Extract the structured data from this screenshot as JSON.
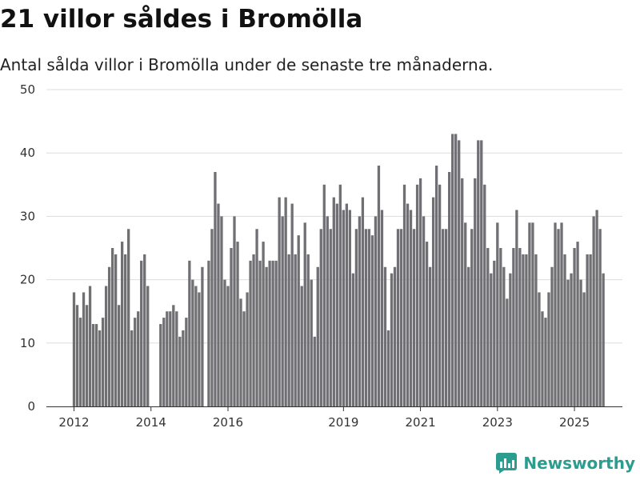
{
  "header": {
    "title": "21 villor såldes i Bromölla",
    "subtitle": "Antal sålda villor i Bromölla under de senaste tre månaderna."
  },
  "brand": {
    "name": "Newsworthy",
    "icon": "newsworthy-logo-icon",
    "color": "#2a9d8f"
  },
  "colors": {
    "bar": "#707074",
    "highlight": "#1a9a9a",
    "grid": "#dddddd"
  },
  "chart_data": {
    "type": "bar",
    "title": "",
    "xlabel": "",
    "ylabel": "",
    "ylim": [
      0,
      50
    ],
    "yticks": [
      "0",
      "10",
      "20",
      "30",
      "40",
      "50"
    ],
    "xticks": [
      "2012",
      "2014",
      "2016",
      "2019",
      "2021",
      "2023",
      "2025"
    ],
    "start": "2012-01",
    "grid": true,
    "values": [
      18,
      16,
      14,
      18,
      16,
      19,
      13,
      13,
      12,
      14,
      19,
      22,
      25,
      24,
      16,
      26,
      24,
      28,
      12,
      14,
      15,
      23,
      24,
      19,
      null,
      null,
      null,
      13,
      14,
      15,
      15,
      16,
      15,
      11,
      12,
      14,
      23,
      20,
      19,
      18,
      22,
      null,
      23,
      28,
      37,
      32,
      30,
      20,
      19,
      25,
      30,
      26,
      17,
      15,
      18,
      23,
      24,
      28,
      23,
      26,
      22,
      23,
      23,
      23,
      33,
      30,
      33,
      24,
      32,
      24,
      27,
      19,
      29,
      24,
      20,
      11,
      22,
      28,
      35,
      30,
      28,
      33,
      32,
      35,
      31,
      32,
      31,
      21,
      28,
      30,
      33,
      28,
      28,
      27,
      30,
      38,
      31,
      22,
      12,
      21,
      22,
      28,
      28,
      35,
      32,
      31,
      28,
      35,
      36,
      30,
      26,
      22,
      33,
      38,
      35,
      28,
      28,
      37,
      43,
      43,
      42,
      36,
      29,
      22,
      28,
      36,
      42,
      42,
      35,
      25,
      21,
      23,
      29,
      25,
      22,
      17,
      21,
      25,
      31,
      25,
      24,
      24,
      29,
      29,
      24,
      18,
      15,
      14,
      18,
      22,
      29,
      28,
      29,
      24,
      20,
      21,
      25,
      26,
      20,
      18,
      24,
      24,
      30,
      31,
      28,
      21
    ],
    "highlight_index": 169,
    "highlight_label": "21"
  }
}
